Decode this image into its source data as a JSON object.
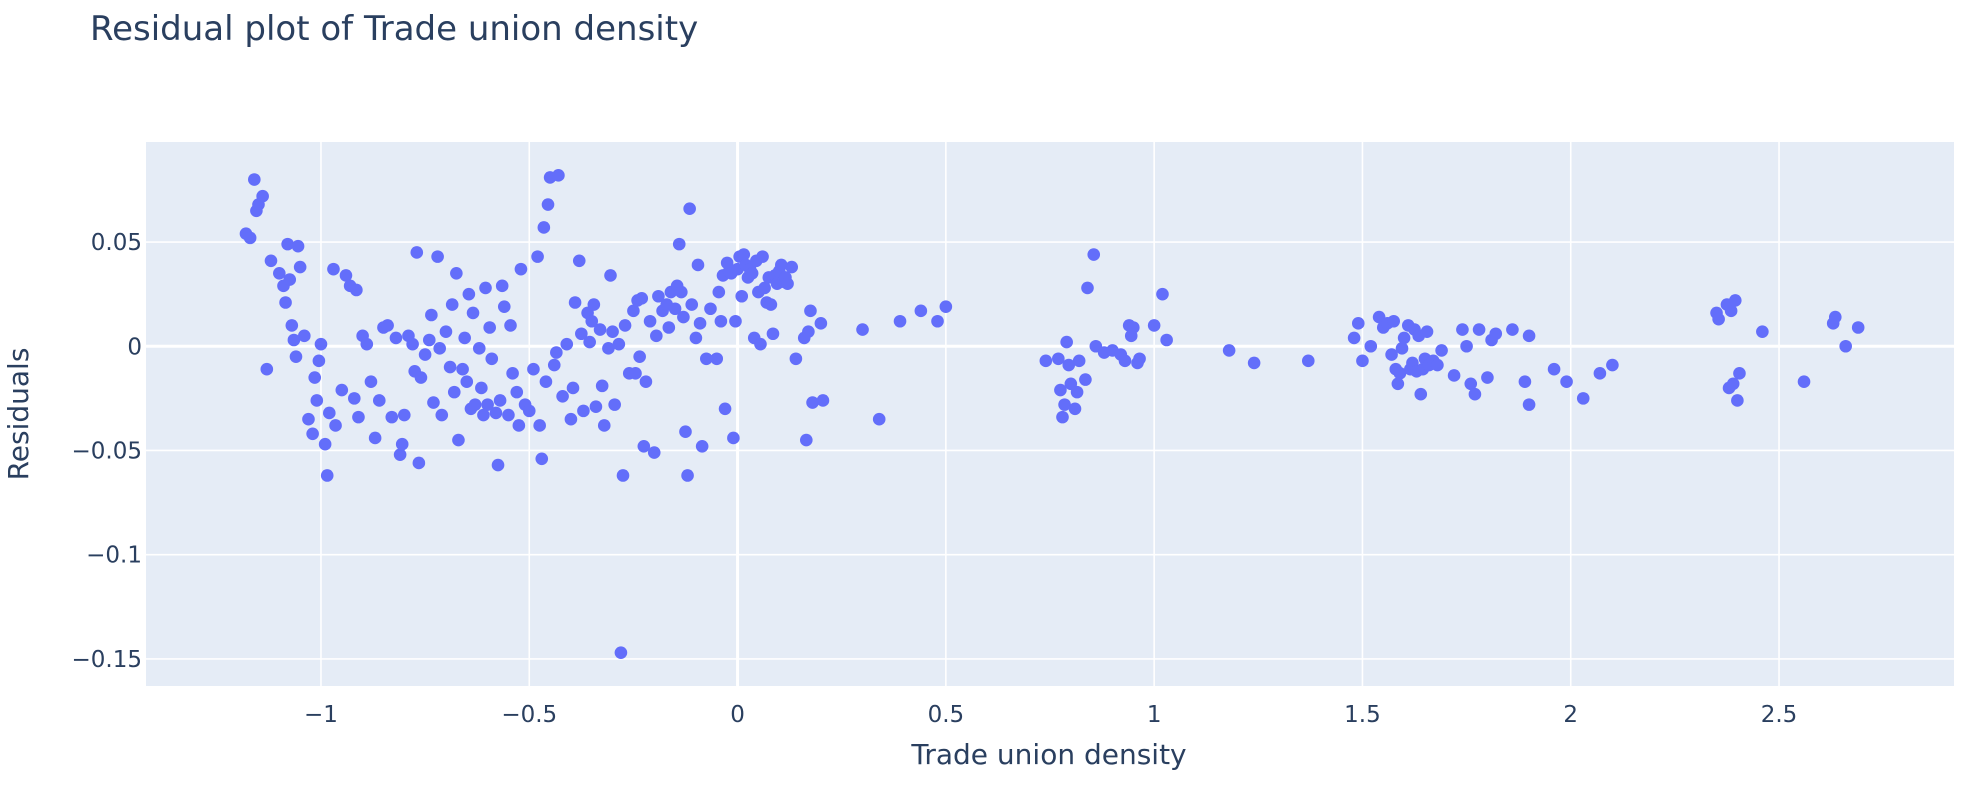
{
  "chart_data": {
    "type": "scatter",
    "title": "Residual plot of Trade union density",
    "xlabel": "Trade union density",
    "ylabel": "Residuals",
    "xlim": [
      -1.42,
      2.92
    ],
    "ylim": [
      -0.163,
      0.098
    ],
    "x_ticks": [
      -1,
      -0.5,
      0,
      0.5,
      1,
      1.5,
      2,
      2.5
    ],
    "x_tick_labels": [
      "−1",
      "−0.5",
      "0",
      "0.5",
      "1",
      "1.5",
      "2",
      "2.5"
    ],
    "y_ticks": [
      0.05,
      0,
      -0.05,
      -0.1,
      -0.15
    ],
    "y_tick_labels": [
      "0.05",
      "0",
      "−0.05",
      "−0.1",
      "−0.15"
    ],
    "grid": true,
    "legend": "none",
    "colors": {
      "marker": "#636efa",
      "plot_background": "#e5ecf6",
      "grid": "#ffffff",
      "text": "#2a3f5f"
    },
    "series": [
      {
        "points": [
          [
            -1.18,
            0.054
          ],
          [
            -1.17,
            0.052
          ],
          [
            -1.16,
            0.08
          ],
          [
            -1.15,
            0.068
          ],
          [
            -1.14,
            0.072
          ],
          [
            -1.155,
            0.065
          ],
          [
            -1.13,
            -0.011
          ],
          [
            -1.12,
            0.041
          ],
          [
            -1.1,
            0.035
          ],
          [
            -1.09,
            0.029
          ],
          [
            -1.085,
            0.021
          ],
          [
            -1.08,
            0.049
          ],
          [
            -1.075,
            0.032
          ],
          [
            -1.07,
            0.01
          ],
          [
            -1.065,
            0.003
          ],
          [
            -1.06,
            -0.005
          ],
          [
            -1.055,
            0.048
          ],
          [
            -1.05,
            0.038
          ],
          [
            -1.04,
            0.005
          ],
          [
            -1.03,
            -0.035
          ],
          [
            -1.02,
            -0.042
          ],
          [
            -1.015,
            -0.015
          ],
          [
            -1.01,
            -0.026
          ],
          [
            -1.005,
            -0.007
          ],
          [
            -1.0,
            0.001
          ],
          [
            -0.99,
            -0.047
          ],
          [
            -0.985,
            -0.062
          ],
          [
            -0.98,
            -0.032
          ],
          [
            -0.97,
            0.037
          ],
          [
            -0.965,
            -0.038
          ],
          [
            -0.95,
            -0.021
          ],
          [
            -0.94,
            0.034
          ],
          [
            -0.93,
            0.029
          ],
          [
            -0.92,
            -0.025
          ],
          [
            -0.915,
            0.027
          ],
          [
            -0.91,
            -0.034
          ],
          [
            -0.9,
            0.005
          ],
          [
            -0.89,
            0.001
          ],
          [
            -0.88,
            -0.017
          ],
          [
            -0.87,
            -0.044
          ],
          [
            -0.86,
            -0.026
          ],
          [
            -0.85,
            0.009
          ],
          [
            -0.84,
            0.01
          ],
          [
            -0.83,
            -0.034
          ],
          [
            -0.82,
            0.004
          ],
          [
            -0.81,
            -0.052
          ],
          [
            -0.805,
            -0.047
          ],
          [
            -0.8,
            -0.033
          ],
          [
            -0.79,
            0.005
          ],
          [
            -0.78,
            0.001
          ],
          [
            -0.775,
            -0.012
          ],
          [
            -0.77,
            0.045
          ],
          [
            -0.765,
            -0.056
          ],
          [
            -0.76,
            -0.015
          ],
          [
            -0.75,
            -0.004
          ],
          [
            -0.74,
            0.003
          ],
          [
            -0.735,
            0.015
          ],
          [
            -0.73,
            -0.027
          ],
          [
            -0.72,
            0.043
          ],
          [
            -0.715,
            -0.001
          ],
          [
            -0.71,
            -0.033
          ],
          [
            -0.7,
            0.007
          ],
          [
            -0.69,
            -0.01
          ],
          [
            -0.685,
            0.02
          ],
          [
            -0.68,
            -0.022
          ],
          [
            -0.675,
            0.035
          ],
          [
            -0.67,
            -0.045
          ],
          [
            -0.66,
            -0.011
          ],
          [
            -0.655,
            0.004
          ],
          [
            -0.65,
            -0.017
          ],
          [
            -0.645,
            0.025
          ],
          [
            -0.64,
            -0.03
          ],
          [
            -0.635,
            0.016
          ],
          [
            -0.63,
            -0.028
          ],
          [
            -0.62,
            -0.001
          ],
          [
            -0.615,
            -0.02
          ],
          [
            -0.61,
            -0.033
          ],
          [
            -0.605,
            0.028
          ],
          [
            -0.6,
            -0.028
          ],
          [
            -0.595,
            0.009
          ],
          [
            -0.59,
            -0.006
          ],
          [
            -0.58,
            -0.032
          ],
          [
            -0.575,
            -0.057
          ],
          [
            -0.57,
            -0.026
          ],
          [
            -0.565,
            0.029
          ],
          [
            -0.56,
            0.019
          ],
          [
            -0.55,
            -0.033
          ],
          [
            -0.545,
            0.01
          ],
          [
            -0.54,
            -0.013
          ],
          [
            -0.53,
            -0.022
          ],
          [
            -0.525,
            -0.038
          ],
          [
            -0.52,
            0.037
          ],
          [
            -0.51,
            -0.028
          ],
          [
            -0.5,
            -0.031
          ],
          [
            -0.49,
            -0.011
          ],
          [
            -0.48,
            0.043
          ],
          [
            -0.475,
            -0.038
          ],
          [
            -0.47,
            -0.054
          ],
          [
            -0.465,
            0.057
          ],
          [
            -0.46,
            -0.017
          ],
          [
            -0.455,
            0.068
          ],
          [
            -0.45,
            0.081
          ],
          [
            -0.44,
            -0.009
          ],
          [
            -0.435,
            -0.003
          ],
          [
            -0.43,
            0.082
          ],
          [
            -0.42,
            -0.024
          ],
          [
            -0.41,
            0.001
          ],
          [
            -0.4,
            -0.035
          ],
          [
            -0.395,
            -0.02
          ],
          [
            -0.39,
            0.021
          ],
          [
            -0.38,
            0.041
          ],
          [
            -0.375,
            0.006
          ],
          [
            -0.37,
            -0.031
          ],
          [
            -0.36,
            0.016
          ],
          [
            -0.355,
            0.002
          ],
          [
            -0.35,
            0.012
          ],
          [
            -0.345,
            0.02
          ],
          [
            -0.34,
            -0.029
          ],
          [
            -0.33,
            0.008
          ],
          [
            -0.325,
            -0.019
          ],
          [
            -0.32,
            -0.038
          ],
          [
            -0.31,
            -0.001
          ],
          [
            -0.305,
            0.034
          ],
          [
            -0.3,
            0.007
          ],
          [
            -0.295,
            -0.028
          ],
          [
            -0.28,
            -0.147
          ],
          [
            -0.285,
            0.001
          ],
          [
            -0.275,
            -0.062
          ],
          [
            -0.27,
            0.01
          ],
          [
            -0.26,
            -0.013
          ],
          [
            -0.25,
            0.017
          ],
          [
            -0.245,
            -0.013
          ],
          [
            -0.24,
            0.022
          ],
          [
            -0.235,
            -0.005
          ],
          [
            -0.23,
            0.023
          ],
          [
            -0.225,
            -0.048
          ],
          [
            -0.22,
            -0.017
          ],
          [
            -0.21,
            0.012
          ],
          [
            -0.2,
            -0.051
          ],
          [
            -0.195,
            0.005
          ],
          [
            -0.19,
            0.024
          ],
          [
            -0.18,
            0.017
          ],
          [
            -0.17,
            0.02
          ],
          [
            -0.165,
            0.009
          ],
          [
            -0.16,
            0.026
          ],
          [
            -0.15,
            0.018
          ],
          [
            -0.145,
            0.029
          ],
          [
            -0.14,
            0.049
          ],
          [
            -0.135,
            0.026
          ],
          [
            -0.13,
            0.014
          ],
          [
            -0.125,
            -0.041
          ],
          [
            -0.12,
            -0.062
          ],
          [
            -0.115,
            0.066
          ],
          [
            -0.11,
            0.02
          ],
          [
            -0.1,
            0.004
          ],
          [
            -0.095,
            0.039
          ],
          [
            -0.09,
            0.011
          ],
          [
            -0.085,
            -0.048
          ],
          [
            -0.075,
            -0.006
          ],
          [
            -0.065,
            0.018
          ],
          [
            -0.05,
            -0.006
          ],
          [
            -0.045,
            0.026
          ],
          [
            -0.04,
            0.012
          ],
          [
            -0.035,
            0.034
          ],
          [
            -0.03,
            -0.03
          ],
          [
            -0.025,
            0.04
          ],
          [
            -0.02,
            0.036
          ],
          [
            -0.015,
            0.035
          ],
          [
            -0.01,
            -0.044
          ],
          [
            -0.005,
            0.012
          ],
          [
            0.0,
            0.037
          ],
          [
            0.005,
            0.043
          ],
          [
            0.01,
            0.024
          ],
          [
            0.015,
            0.044
          ],
          [
            0.02,
            0.039
          ],
          [
            0.025,
            0.033
          ],
          [
            0.03,
            0.037
          ],
          [
            0.035,
            0.035
          ],
          [
            0.04,
            0.004
          ],
          [
            0.045,
            0.041
          ],
          [
            0.05,
            0.026
          ],
          [
            0.055,
            0.001
          ],
          [
            0.06,
            0.043
          ],
          [
            0.065,
            0.028
          ],
          [
            0.07,
            0.021
          ],
          [
            0.075,
            0.033
          ],
          [
            0.08,
            0.02
          ],
          [
            0.085,
            0.006
          ],
          [
            0.09,
            0.034
          ],
          [
            0.095,
            0.03
          ],
          [
            0.1,
            0.036
          ],
          [
            0.105,
            0.039
          ],
          [
            0.11,
            0.031
          ],
          [
            0.115,
            0.033
          ],
          [
            0.12,
            0.03
          ],
          [
            0.13,
            0.038
          ],
          [
            0.14,
            -0.006
          ],
          [
            0.16,
            0.004
          ],
          [
            0.165,
            -0.045
          ],
          [
            0.17,
            0.007
          ],
          [
            0.175,
            0.017
          ],
          [
            0.18,
            -0.027
          ],
          [
            0.2,
            0.011
          ],
          [
            0.205,
            -0.026
          ],
          [
            0.3,
            0.008
          ],
          [
            0.34,
            -0.035
          ],
          [
            0.39,
            0.012
          ],
          [
            0.44,
            0.017
          ],
          [
            0.48,
            0.012
          ],
          [
            0.5,
            0.019
          ],
          [
            0.74,
            -0.007
          ],
          [
            0.77,
            -0.006
          ],
          [
            0.775,
            -0.021
          ],
          [
            0.78,
            -0.034
          ],
          [
            0.785,
            -0.028
          ],
          [
            0.79,
            0.002
          ],
          [
            0.795,
            -0.009
          ],
          [
            0.8,
            -0.018
          ],
          [
            0.81,
            -0.03
          ],
          [
            0.815,
            -0.022
          ],
          [
            0.82,
            -0.007
          ],
          [
            0.835,
            -0.016
          ],
          [
            0.84,
            0.028
          ],
          [
            0.855,
            0.044
          ],
          [
            0.86,
            0.0
          ],
          [
            0.88,
            -0.003
          ],
          [
            0.9,
            -0.002
          ],
          [
            0.92,
            -0.004
          ],
          [
            0.93,
            -0.007
          ],
          [
            0.94,
            0.01
          ],
          [
            0.945,
            0.005
          ],
          [
            0.95,
            0.009
          ],
          [
            0.96,
            -0.008
          ],
          [
            0.965,
            -0.006
          ],
          [
            1.0,
            0.01
          ],
          [
            1.02,
            0.025
          ],
          [
            1.03,
            0.003
          ],
          [
            1.18,
            -0.002
          ],
          [
            1.24,
            -0.008
          ],
          [
            1.37,
            -0.007
          ],
          [
            1.48,
            0.004
          ],
          [
            1.49,
            0.011
          ],
          [
            1.5,
            -0.007
          ],
          [
            1.52,
            0.0
          ],
          [
            1.54,
            0.014
          ],
          [
            1.55,
            0.009
          ],
          [
            1.56,
            0.011
          ],
          [
            1.57,
            -0.004
          ],
          [
            1.575,
            0.012
          ],
          [
            1.58,
            -0.011
          ],
          [
            1.585,
            -0.018
          ],
          [
            1.59,
            -0.013
          ],
          [
            1.595,
            -0.001
          ],
          [
            1.6,
            0.004
          ],
          [
            1.61,
            0.01
          ],
          [
            1.615,
            -0.011
          ],
          [
            1.62,
            -0.008
          ],
          [
            1.625,
            0.008
          ],
          [
            1.63,
            -0.012
          ],
          [
            1.635,
            0.005
          ],
          [
            1.64,
            -0.023
          ],
          [
            1.645,
            -0.011
          ],
          [
            1.65,
            -0.006
          ],
          [
            1.655,
            0.007
          ],
          [
            1.66,
            -0.009
          ],
          [
            1.67,
            -0.007
          ],
          [
            1.68,
            -0.009
          ],
          [
            1.69,
            -0.002
          ],
          [
            1.72,
            -0.014
          ],
          [
            1.74,
            0.008
          ],
          [
            1.75,
            0.0
          ],
          [
            1.76,
            -0.018
          ],
          [
            1.77,
            -0.023
          ],
          [
            1.78,
            0.008
          ],
          [
            1.8,
            -0.015
          ],
          [
            1.81,
            0.003
          ],
          [
            1.82,
            0.006
          ],
          [
            1.86,
            0.008
          ],
          [
            1.89,
            -0.017
          ],
          [
            1.9,
            -0.028
          ],
          [
            1.9,
            0.005
          ],
          [
            1.96,
            -0.011
          ],
          [
            1.99,
            -0.017
          ],
          [
            2.03,
            -0.025
          ],
          [
            2.07,
            -0.013
          ],
          [
            2.1,
            -0.009
          ],
          [
            2.35,
            0.016
          ],
          [
            2.355,
            0.013
          ],
          [
            2.375,
            0.02
          ],
          [
            2.38,
            -0.02
          ],
          [
            2.385,
            0.017
          ],
          [
            2.39,
            -0.018
          ],
          [
            2.395,
            0.022
          ],
          [
            2.4,
            -0.026
          ],
          [
            2.405,
            -0.013
          ],
          [
            2.46,
            0.007
          ],
          [
            2.56,
            -0.017
          ],
          [
            2.63,
            0.011
          ],
          [
            2.635,
            0.014
          ],
          [
            2.66,
            0.0
          ],
          [
            2.69,
            0.009
          ]
        ]
      }
    ]
  }
}
